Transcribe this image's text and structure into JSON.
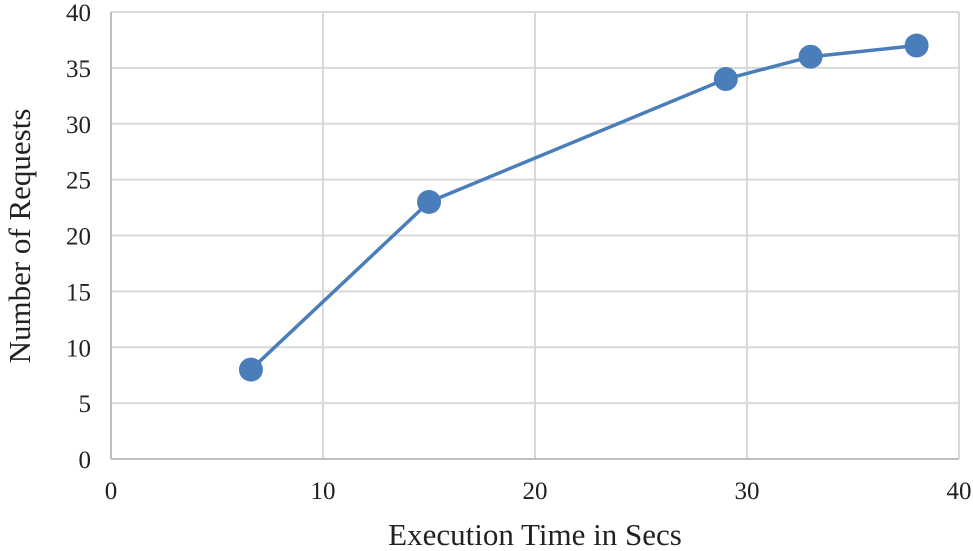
{
  "chart_data": {
    "type": "line",
    "title": "",
    "xlabel": "Execution Time in Secs",
    "ylabel": "Number of Requests",
    "xlim": [
      0,
      40
    ],
    "ylim": [
      0,
      40
    ],
    "xticks": [
      0,
      10,
      20,
      30,
      40
    ],
    "yticks": [
      0,
      5,
      10,
      15,
      20,
      25,
      30,
      35,
      40
    ],
    "grid": true,
    "legend": "none",
    "series": [
      {
        "color": "#4a7ebb",
        "x": [
          6.6,
          15,
          29,
          33,
          38
        ],
        "y": [
          8,
          23,
          34,
          36,
          37
        ]
      }
    ]
  }
}
